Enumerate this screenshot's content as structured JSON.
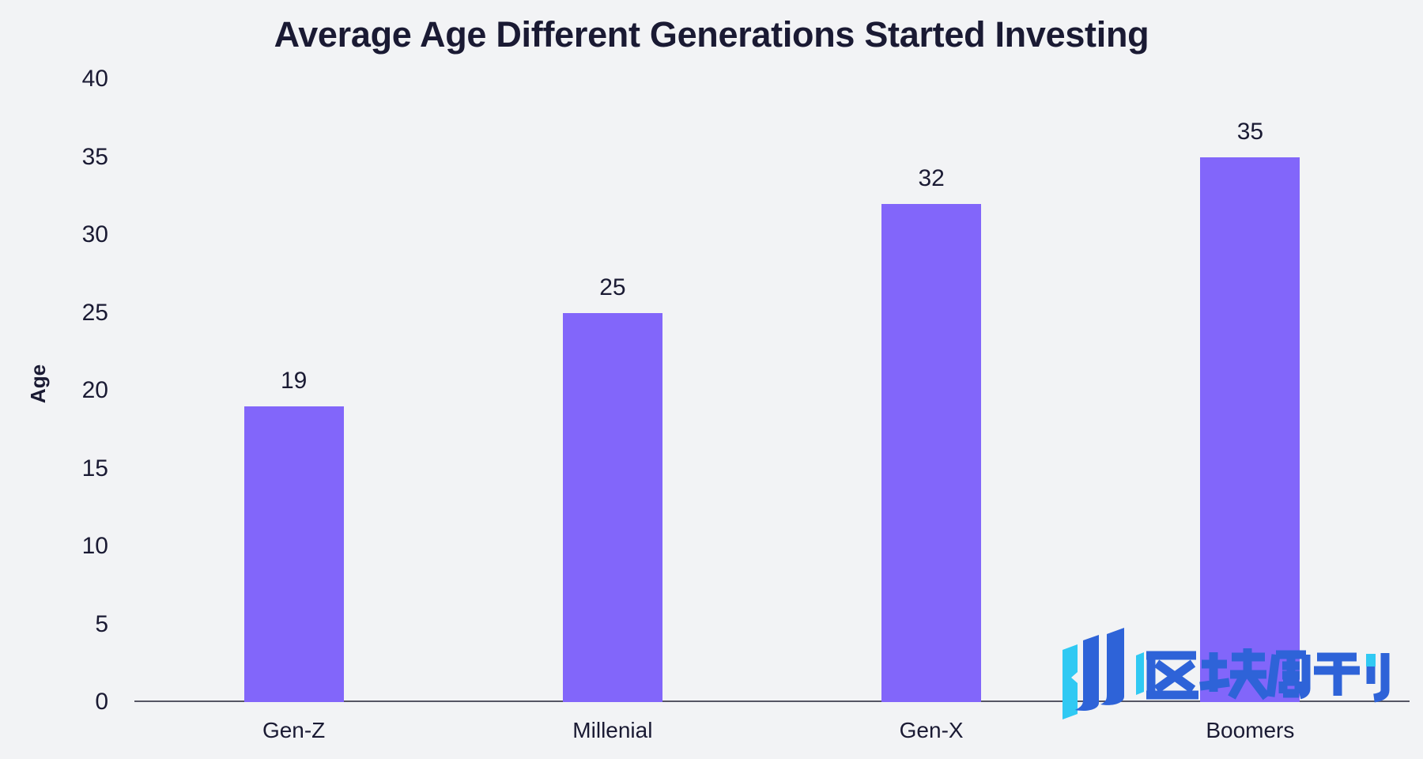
{
  "page": {
    "background_color": "#F2F3F5",
    "text_color": "#1A1A33",
    "axis_line_color": "#565664"
  },
  "chart_data": {
    "type": "bar",
    "title": "Average Age Different Generations Started Investing",
    "categories": [
      "Gen-Z",
      "Millenial",
      "Gen-X",
      "Boomers"
    ],
    "values": [
      19,
      25,
      32,
      35
    ],
    "data_labels": [
      "19",
      "25",
      "32",
      "35"
    ],
    "xlabel": "",
    "ylabel": "Age",
    "ylim": [
      0,
      40
    ],
    "yticks": [
      0,
      5,
      10,
      15,
      20,
      25,
      30,
      35,
      40
    ],
    "grid": false,
    "legend": null,
    "bar_color": "#8266FA"
  },
  "watermark": {
    "text": "区块周刊",
    "icon": "rising-bars-logo-icon",
    "blue": "#2E63D8",
    "cyan": "#30C9F3"
  }
}
